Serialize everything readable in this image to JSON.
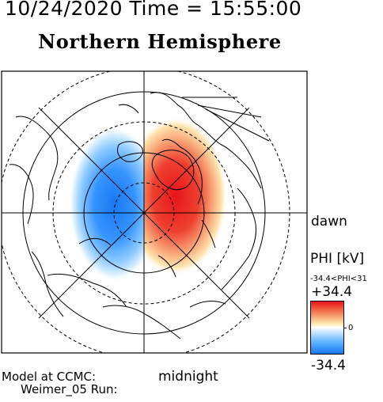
{
  "header": {
    "datetime": "10/24/2020 Time = 15:55:00",
    "title": "Northern Hemisphere"
  },
  "orientation": {
    "right": "dawn",
    "bottom": "midnight"
  },
  "colorbar": {
    "label": "PHI [kV]",
    "range_text": "-34.4<PHI<31",
    "max_label": "+34.4",
    "zero_label": "0",
    "min_label": "-34.4",
    "colors": {
      "positive": "#e8141a",
      "zero": "#ffffff",
      "negative": "#1878f0"
    }
  },
  "footer": {
    "model": "Model at CCMC:",
    "run": "Weimer_05 Run:"
  },
  "map": {
    "projection": "north-polar",
    "potential_cells": [
      {
        "sign": "negative",
        "side": "left",
        "peak_kV": -34.4
      },
      {
        "sign": "positive",
        "side": "right",
        "peak_kV": 31
      }
    ]
  }
}
